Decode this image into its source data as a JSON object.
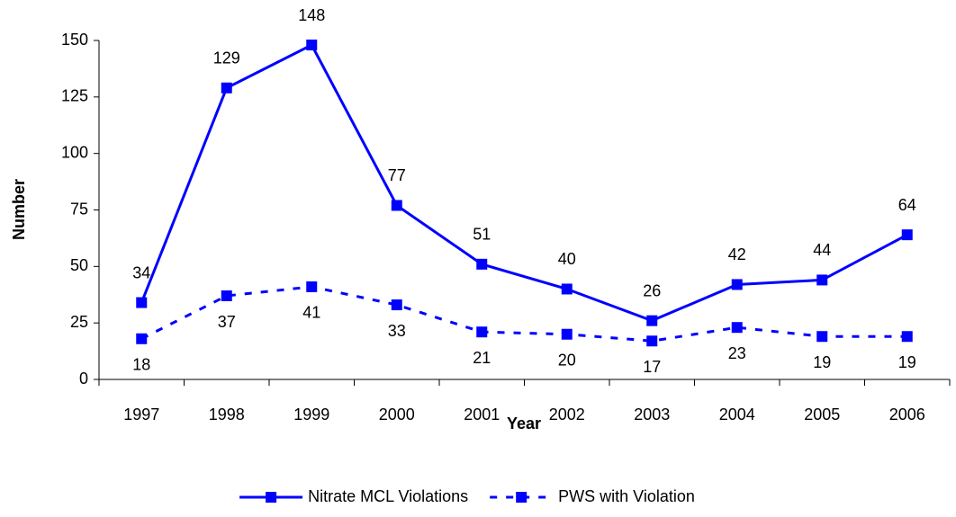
{
  "chart_data": {
    "type": "line",
    "x_label": "Year",
    "y_label": "Number",
    "categories": [
      "1997",
      "1998",
      "1999",
      "2000",
      "2001",
      "2002",
      "2003",
      "2004",
      "2005",
      "2006"
    ],
    "series": [
      {
        "name": "Nitrate MCL Violations",
        "color": "#0000ff",
        "line_style": "solid",
        "label_position": "above",
        "values": [
          34,
          129,
          148,
          77,
          51,
          40,
          26,
          42,
          44,
          64
        ]
      },
      {
        "name": "PWS with Violation",
        "color": "#0000ff",
        "line_style": "dashed",
        "label_position": "below",
        "values": [
          18,
          37,
          41,
          33,
          21,
          20,
          17,
          23,
          19,
          19
        ]
      }
    ],
    "ylim": [
      0,
      150
    ],
    "yticks": [
      0,
      25,
      50,
      75,
      100,
      125,
      150
    ],
    "grid": false,
    "legend": "bottom"
  }
}
